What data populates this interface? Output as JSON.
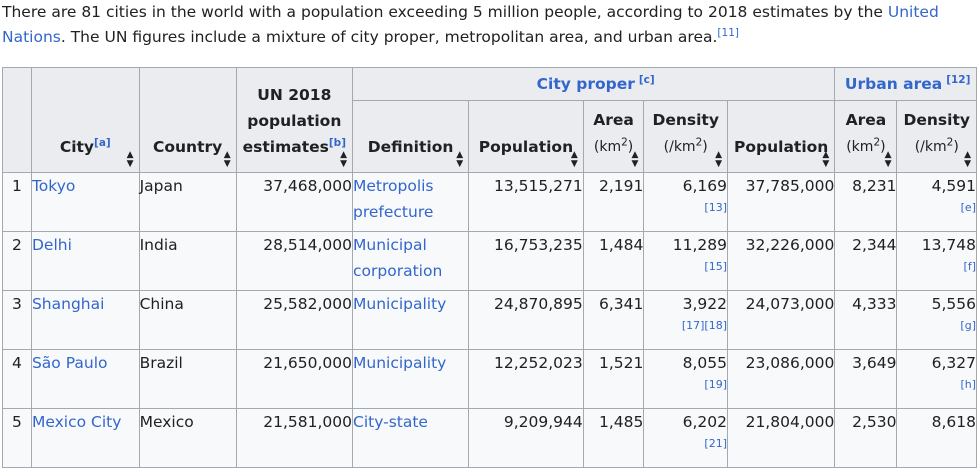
{
  "intro": {
    "text_before": "There are 81 cities in the world with a population exceeding 5 million people, according to 2018 estimates by the ",
    "link": "United Nations",
    "text_after": ". The UN figures include a mixture of city proper, metropolitan area, and urban area.",
    "ref": "[11]"
  },
  "table": {
    "headers": {
      "city": "City",
      "city_ref": "[a]",
      "country": "Country",
      "un_line1": "UN 2018",
      "un_line2": "population",
      "un_line3": "estimates",
      "un_ref": "[b]",
      "city_proper": "City proper",
      "city_proper_ref": "[c]",
      "urban_area": "Urban area",
      "urban_area_ref": "[12]",
      "definition": "Definition",
      "population": "Population",
      "area": "Area",
      "area_unit": "(km",
      "area_unit_sup": "2",
      "area_unit_end": ")",
      "density": "Density",
      "density_unit": "(/km",
      "density_unit_sup": "2",
      "density_unit_end": ")",
      "sort_arrow": "▲▼"
    },
    "rows": [
      {
        "rank": "1",
        "city": "Tokyo",
        "country": "Japan",
        "un": "37,468,000",
        "def": "Metropolis prefecture",
        "pop": "13,515,271",
        "area": "2,191",
        "density": "6,169",
        "density_ref": "[13]",
        "u_pop": "37,785,000",
        "u_area": "8,231",
        "u_density": "4,591",
        "u_ref": "[e]"
      },
      {
        "rank": "2",
        "city": "Delhi",
        "country": "India",
        "un": "28,514,000",
        "def": "Municipal corporation",
        "pop": "16,753,235",
        "area": "1,484",
        "density": "11,289",
        "density_ref": "[15]",
        "u_pop": "32,226,000",
        "u_area": "2,344",
        "u_density": "13,748",
        "u_ref": "[f]"
      },
      {
        "rank": "3",
        "city": "Shanghai",
        "country": "China",
        "un": "25,582,000",
        "def": "Municipality",
        "pop": "24,870,895",
        "area": "6,341",
        "density": "3,922",
        "density_ref": "[17][18]",
        "u_pop": "24,073,000",
        "u_area": "4,333",
        "u_density": "5,556",
        "u_ref": "[g]"
      },
      {
        "rank": "4",
        "city": "São Paulo",
        "country": "Brazil",
        "un": "21,650,000",
        "def": "Municipality",
        "pop": "12,252,023",
        "area": "1,521",
        "density": "8,055",
        "density_ref": "[19]",
        "u_pop": "23,086,000",
        "u_area": "3,649",
        "u_density": "6,327",
        "u_ref": "[h]"
      },
      {
        "rank": "5",
        "city": "Mexico City",
        "country": "Mexico",
        "un": "21,581,000",
        "def": "City-state",
        "pop": "9,209,944",
        "area": "1,485",
        "density": "6,202",
        "density_ref": "[21]",
        "u_pop": "21,804,000",
        "u_area": "2,530",
        "u_density": "8,618",
        "u_ref": ""
      }
    ]
  }
}
